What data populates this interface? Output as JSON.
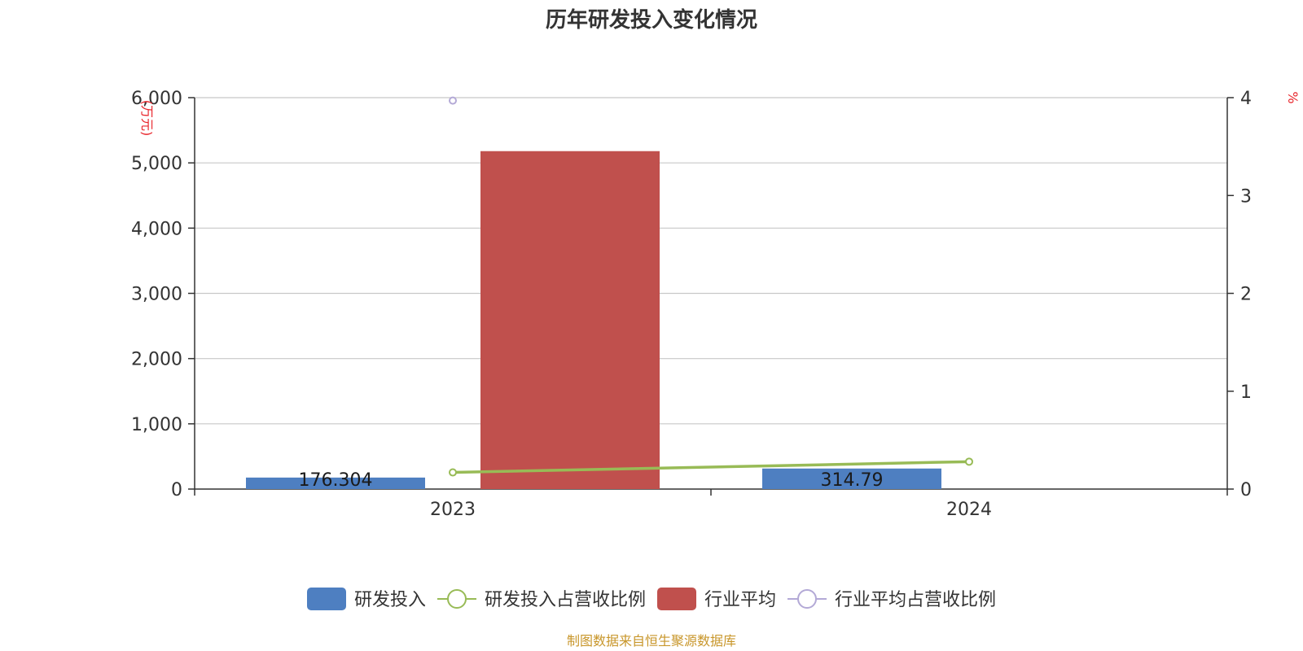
{
  "chart_data": {
    "type": "bar",
    "title": "历年研发投入变化情况",
    "categories": [
      "2023",
      "2024"
    ],
    "y_left": {
      "unit": "(万元)",
      "ylim": [
        0,
        6000
      ],
      "ticks": [
        "0",
        "1,000",
        "2,000",
        "3,000",
        "4,000",
        "5,000",
        "6,000"
      ]
    },
    "y_right": {
      "unit": "%",
      "ylim": [
        0,
        4
      ],
      "ticks": [
        "0",
        "1",
        "2",
        "3",
        "4"
      ]
    },
    "series": [
      {
        "name": "研发投入",
        "kind": "bar",
        "axis": "left",
        "color": "#4e7fc1",
        "values": [
          176.304,
          314.79
        ],
        "labels": [
          "176.304",
          "314.79"
        ]
      },
      {
        "name": "研发投入占营收比例",
        "kind": "line",
        "axis": "right",
        "color": "#98bb56",
        "values": [
          0.17,
          0.28
        ]
      },
      {
        "name": "行业平均",
        "kind": "bar",
        "axis": "left",
        "color": "#c0504d",
        "values": [
          5180,
          null
        ]
      },
      {
        "name": "行业平均占营收比例",
        "kind": "line",
        "axis": "right",
        "color": "#b3a9d6",
        "values": [
          3.97,
          null
        ]
      }
    ],
    "grid": true,
    "legend_position": "bottom",
    "source": "制图数据来自恒生聚源数据库"
  }
}
